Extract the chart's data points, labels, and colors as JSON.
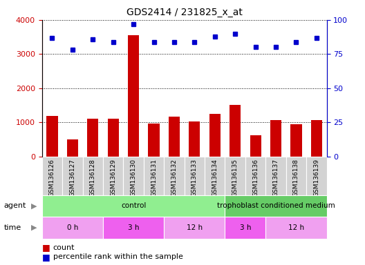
{
  "title": "GDS2414 / 231825_x_at",
  "samples": [
    "GSM136126",
    "GSM136127",
    "GSM136128",
    "GSM136129",
    "GSM136130",
    "GSM136131",
    "GSM136132",
    "GSM136133",
    "GSM136134",
    "GSM136135",
    "GSM136136",
    "GSM136137",
    "GSM136138",
    "GSM136139"
  ],
  "counts": [
    1200,
    500,
    1100,
    1100,
    3550,
    960,
    1160,
    1030,
    1260,
    1510,
    620,
    1060,
    940,
    1070
  ],
  "percentiles": [
    87,
    78,
    86,
    84,
    97,
    84,
    84,
    84,
    88,
    90,
    80,
    80,
    84,
    87
  ],
  "ylim_left": [
    0,
    4000
  ],
  "ylim_right": [
    0,
    100
  ],
  "yticks_left": [
    0,
    1000,
    2000,
    3000,
    4000
  ],
  "yticks_right": [
    0,
    25,
    50,
    75,
    100
  ],
  "bar_color": "#cc0000",
  "dot_color": "#0000cc",
  "agent_groups": [
    {
      "label": "control",
      "start": 0,
      "end": 9,
      "color": "#90ee90"
    },
    {
      "label": "trophoblast conditioned medium",
      "start": 9,
      "end": 14,
      "color": "#66cc66"
    }
  ],
  "time_groups": [
    {
      "label": "0 h",
      "start": 0,
      "end": 3,
      "color": "#f0a0f0"
    },
    {
      "label": "3 h",
      "start": 3,
      "end": 6,
      "color": "#ee60ee"
    },
    {
      "label": "12 h",
      "start": 6,
      "end": 9,
      "color": "#f0a0f0"
    },
    {
      "label": "3 h",
      "start": 9,
      "end": 11,
      "color": "#ee60ee"
    },
    {
      "label": "12 h",
      "start": 11,
      "end": 14,
      "color": "#f0a0f0"
    }
  ],
  "bg_color": "#ffffff",
  "grid_color": "#000000",
  "tick_color_left": "#cc0000",
  "tick_color_right": "#0000cc",
  "xtick_bg": "#d3d3d3",
  "legend_count_color": "#cc0000",
  "legend_pct_color": "#0000cc"
}
